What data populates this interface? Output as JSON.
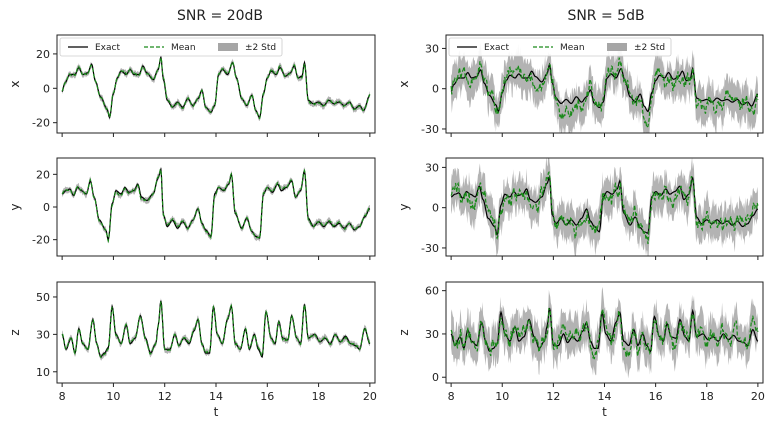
{
  "chart_data": [
    {
      "type": "line",
      "panel": "left-x",
      "column_title": "SNR = 20dB",
      "ylabel": "x",
      "xlabel": "",
      "xlim": [
        7.8,
        20.2
      ],
      "ylim": [
        -26,
        31
      ],
      "yticks": [
        -20,
        0,
        20
      ],
      "xticks": [
        8,
        10,
        12,
        14,
        16,
        18,
        20
      ],
      "xticklabels_visible": false,
      "legend": "top-left",
      "series": [
        {
          "name": "Exact"
        },
        {
          "name": "Mean"
        },
        {
          "name": "±2 Std"
        }
      ],
      "noise_scale": 0.04
    },
    {
      "type": "line",
      "panel": "left-y",
      "ylabel": "y",
      "xlabel": "",
      "xlim": [
        7.8,
        20.2
      ],
      "ylim": [
        -30,
        30
      ],
      "yticks": [
        -20,
        0,
        20
      ],
      "xticks": [
        8,
        10,
        12,
        14,
        16,
        18,
        20
      ],
      "xticklabels_visible": false,
      "noise_scale": 0.04
    },
    {
      "type": "line",
      "panel": "left-z",
      "ylabel": "z",
      "xlabel": "t",
      "xlim": [
        7.8,
        20.2
      ],
      "ylim": [
        4,
        58
      ],
      "yticks": [
        10,
        30,
        50
      ],
      "xticks": [
        8,
        10,
        12,
        14,
        16,
        18,
        20
      ],
      "xticklabels_visible": true,
      "noise_scale": 0.04
    },
    {
      "type": "line",
      "panel": "right-x",
      "column_title": "SNR = 5dB",
      "ylabel": "x",
      "xlabel": "",
      "xlim": [
        7.8,
        20.2
      ],
      "ylim": [
        -33,
        40
      ],
      "yticks": [
        -30,
        0,
        30
      ],
      "xticks": [
        8,
        10,
        12,
        14,
        16,
        18,
        20
      ],
      "xticklabels_visible": false,
      "legend": "top-left",
      "series": [
        {
          "name": "Exact"
        },
        {
          "name": "Mean"
        },
        {
          "name": "±2 Std"
        }
      ],
      "noise_scale": 0.28
    },
    {
      "type": "line",
      "panel": "right-y",
      "ylabel": "y",
      "xlabel": "",
      "xlim": [
        7.8,
        20.2
      ],
      "ylim": [
        -36,
        37
      ],
      "yticks": [
        -30,
        0,
        30
      ],
      "xticks": [
        8,
        10,
        12,
        14,
        16,
        18,
        20
      ],
      "xticklabels_visible": false,
      "noise_scale": 0.28
    },
    {
      "type": "line",
      "panel": "right-z",
      "ylabel": "z",
      "xlabel": "t",
      "xlim": [
        7.8,
        20.2
      ],
      "ylim": [
        -4,
        66
      ],
      "yticks": [
        0,
        30,
        60
      ],
      "xticks": [
        8,
        10,
        12,
        14,
        16,
        18,
        20
      ],
      "xticklabels_visible": true,
      "noise_scale": 0.28
    }
  ],
  "colors": {
    "exact": "#000000",
    "mean": "#1a8a1a",
    "band": "#a6a6a6",
    "axis": "#222222"
  },
  "signal_keypoints": {
    "x": [
      [
        8.0,
        -2
      ],
      [
        8.1,
        3
      ],
      [
        8.3,
        8
      ],
      [
        8.5,
        8
      ],
      [
        8.65,
        12
      ],
      [
        8.8,
        8
      ],
      [
        9.0,
        9
      ],
      [
        9.15,
        14
      ],
      [
        9.3,
        4
      ],
      [
        9.5,
        -5
      ],
      [
        9.75,
        -12
      ],
      [
        9.85,
        -17
      ],
      [
        10.0,
        -3
      ],
      [
        10.15,
        6
      ],
      [
        10.3,
        10
      ],
      [
        10.5,
        8
      ],
      [
        10.65,
        11
      ],
      [
        10.8,
        8
      ],
      [
        11.0,
        8
      ],
      [
        11.15,
        13
      ],
      [
        11.3,
        9
      ],
      [
        11.55,
        5
      ],
      [
        11.75,
        11
      ],
      [
        11.85,
        18
      ],
      [
        11.95,
        5
      ],
      [
        12.1,
        -7
      ],
      [
        12.3,
        -11
      ],
      [
        12.5,
        -8
      ],
      [
        12.7,
        -11
      ],
      [
        12.9,
        -6
      ],
      [
        13.1,
        -10
      ],
      [
        13.3,
        -6
      ],
      [
        13.45,
        -1
      ],
      [
        13.6,
        -11
      ],
      [
        13.8,
        -14
      ],
      [
        13.95,
        -10
      ],
      [
        14.1,
        8
      ],
      [
        14.25,
        11
      ],
      [
        14.45,
        8
      ],
      [
        14.65,
        15
      ],
      [
        14.8,
        6
      ],
      [
        15.0,
        -6
      ],
      [
        15.2,
        -10
      ],
      [
        15.4,
        -4
      ],
      [
        15.55,
        -13
      ],
      [
        15.7,
        -17
      ],
      [
        15.85,
        -3
      ],
      [
        16.0,
        6
      ],
      [
        16.15,
        10
      ],
      [
        16.35,
        8
      ],
      [
        16.5,
        12
      ],
      [
        16.7,
        7
      ],
      [
        16.9,
        9
      ],
      [
        17.05,
        13
      ],
      [
        17.2,
        6
      ],
      [
        17.35,
        7
      ],
      [
        17.45,
        15
      ],
      [
        17.6,
        -7
      ],
      [
        17.8,
        -9
      ],
      [
        18.0,
        -8
      ],
      [
        18.2,
        -10
      ],
      [
        18.4,
        -7
      ],
      [
        18.6,
        -9
      ],
      [
        18.8,
        -8
      ],
      [
        19.0,
        -10
      ],
      [
        19.2,
        -8
      ],
      [
        19.4,
        -12
      ],
      [
        19.6,
        -10
      ],
      [
        19.75,
        -13
      ],
      [
        20.0,
        -4
      ]
    ],
    "y": [
      [
        8.0,
        8
      ],
      [
        8.15,
        10
      ],
      [
        8.3,
        11
      ],
      [
        8.45,
        7
      ],
      [
        8.6,
        12
      ],
      [
        8.75,
        10
      ],
      [
        8.95,
        8
      ],
      [
        9.1,
        16
      ],
      [
        9.25,
        6
      ],
      [
        9.45,
        -8
      ],
      [
        9.7,
        -14
      ],
      [
        9.8,
        -20
      ],
      [
        9.95,
        2
      ],
      [
        10.1,
        10
      ],
      [
        10.3,
        8
      ],
      [
        10.45,
        12
      ],
      [
        10.6,
        9
      ],
      [
        10.8,
        10
      ],
      [
        10.95,
        14
      ],
      [
        11.1,
        6
      ],
      [
        11.3,
        4
      ],
      [
        11.55,
        8
      ],
      [
        11.75,
        18
      ],
      [
        11.85,
        23
      ],
      [
        11.95,
        -5
      ],
      [
        12.1,
        -12
      ],
      [
        12.3,
        -8
      ],
      [
        12.5,
        -13
      ],
      [
        12.7,
        -9
      ],
      [
        12.9,
        -13
      ],
      [
        13.1,
        -8
      ],
      [
        13.3,
        -1
      ],
      [
        13.45,
        -10
      ],
      [
        13.6,
        -14
      ],
      [
        13.8,
        -18
      ],
      [
        13.95,
        8
      ],
      [
        14.1,
        12
      ],
      [
        14.3,
        10
      ],
      [
        14.5,
        14
      ],
      [
        14.6,
        20
      ],
      [
        14.75,
        -4
      ],
      [
        15.0,
        -13
      ],
      [
        15.2,
        -7
      ],
      [
        15.4,
        -15
      ],
      [
        15.55,
        -18
      ],
      [
        15.7,
        -19
      ],
      [
        15.85,
        8
      ],
      [
        16.0,
        12
      ],
      [
        16.2,
        9
      ],
      [
        16.4,
        14
      ],
      [
        16.55,
        10
      ],
      [
        16.75,
        12
      ],
      [
        16.95,
        16
      ],
      [
        17.1,
        6
      ],
      [
        17.3,
        10
      ],
      [
        17.45,
        22
      ],
      [
        17.6,
        -7
      ],
      [
        17.8,
        -12
      ],
      [
        18.0,
        -9
      ],
      [
        18.2,
        -12
      ],
      [
        18.4,
        -9
      ],
      [
        18.6,
        -12
      ],
      [
        18.8,
        -10
      ],
      [
        19.0,
        -13
      ],
      [
        19.2,
        -10
      ],
      [
        19.4,
        -14
      ],
      [
        19.6,
        -12
      ],
      [
        19.8,
        -6
      ],
      [
        20.0,
        -1
      ]
    ],
    "z": [
      [
        8.0,
        30
      ],
      [
        8.15,
        22
      ],
      [
        8.35,
        28
      ],
      [
        8.5,
        20
      ],
      [
        8.65,
        33
      ],
      [
        8.8,
        25
      ],
      [
        9.0,
        22
      ],
      [
        9.2,
        38
      ],
      [
        9.35,
        25
      ],
      [
        9.5,
        18
      ],
      [
        9.65,
        20
      ],
      [
        9.8,
        23
      ],
      [
        9.95,
        45
      ],
      [
        10.1,
        30
      ],
      [
        10.3,
        25
      ],
      [
        10.5,
        35
      ],
      [
        10.65,
        25
      ],
      [
        10.85,
        28
      ],
      [
        11.05,
        40
      ],
      [
        11.25,
        28
      ],
      [
        11.45,
        20
      ],
      [
        11.65,
        25
      ],
      [
        11.75,
        35
      ],
      [
        11.85,
        48
      ],
      [
        12.0,
        22
      ],
      [
        12.2,
        22
      ],
      [
        12.4,
        30
      ],
      [
        12.55,
        24
      ],
      [
        12.75,
        28
      ],
      [
        12.95,
        25
      ],
      [
        13.15,
        32
      ],
      [
        13.3,
        38
      ],
      [
        13.45,
        25
      ],
      [
        13.6,
        20
      ],
      [
        13.75,
        20
      ],
      [
        13.9,
        45
      ],
      [
        14.05,
        30
      ],
      [
        14.25,
        25
      ],
      [
        14.45,
        38
      ],
      [
        14.6,
        45
      ],
      [
        14.75,
        25
      ],
      [
        14.95,
        22
      ],
      [
        15.15,
        33
      ],
      [
        15.3,
        22
      ],
      [
        15.5,
        30
      ],
      [
        15.65,
        22
      ],
      [
        15.8,
        18
      ],
      [
        15.95,
        42
      ],
      [
        16.15,
        28
      ],
      [
        16.3,
        25
      ],
      [
        16.45,
        37
      ],
      [
        16.6,
        28
      ],
      [
        16.8,
        27
      ],
      [
        16.95,
        40
      ],
      [
        17.15,
        28
      ],
      [
        17.3,
        25
      ],
      [
        17.45,
        46
      ],
      [
        17.6,
        28
      ],
      [
        17.85,
        30
      ],
      [
        18.05,
        26
      ],
      [
        18.25,
        28
      ],
      [
        18.45,
        25
      ],
      [
        18.65,
        30
      ],
      [
        18.85,
        26
      ],
      [
        19.05,
        29
      ],
      [
        19.25,
        25
      ],
      [
        19.45,
        24
      ],
      [
        19.6,
        22
      ],
      [
        19.8,
        33
      ],
      [
        20.0,
        25
      ]
    ]
  }
}
